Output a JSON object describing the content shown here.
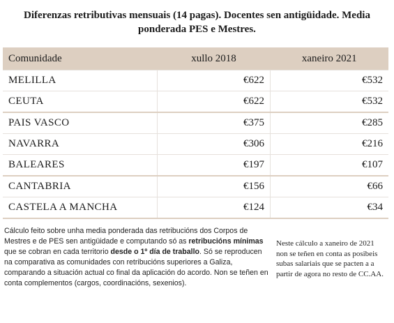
{
  "title": "Diferenzas retributivas mensuais (14 pagas). Docentes sen antigüidade. Media ponderada PES e Mestres.",
  "table": {
    "headers": [
      "Comunidade",
      "xullo 2018",
      "xaneiro 2021"
    ],
    "rows": [
      {
        "community": "MELILLA",
        "jul2018": "€622",
        "jan2021": "€532"
      },
      {
        "community": "CEUTA",
        "jul2018": "€622",
        "jan2021": "€532"
      },
      {
        "community": "PAIS VASCO",
        "jul2018": "€375",
        "jan2021": "€285"
      },
      {
        "community": "NAVARRA",
        "jul2018": "€306",
        "jan2021": "€216"
      },
      {
        "community": "BALEARES",
        "jul2018": "€197",
        "jan2021": "€107"
      },
      {
        "community": "CANTABRIA",
        "jul2018": "€156",
        "jan2021": "€66"
      },
      {
        "community": "CASTELA A MANCHA",
        "jul2018": "€124",
        "jan2021": "€34"
      }
    ]
  },
  "notes": {
    "left_part1": "Cálculo feito sobre unha media ponderada das retribucións dos Corpos de Mestres e de PES sen antigüidade e computando só as ",
    "left_bold1": "retribucións mínimas",
    "left_part2": " que se cobran en cada territorio ",
    "left_bold2": "desde o 1º día de traballo",
    "left_part3": ". Só se reproducen na comparativa as comunidades con retribucións superiores a Galiza, comparando a situación actual co final da aplicación do acordo. Non se teñen en conta complementos (cargos, coordinacións, sexenios).",
    "right": "Neste cálculo a xaneiro de 2021 non se teñen en conta as posibeis subas salariais que se pacten a a partir de agora no resto de CC.AA."
  },
  "colors": {
    "header_bg": "#ddcfc1"
  }
}
